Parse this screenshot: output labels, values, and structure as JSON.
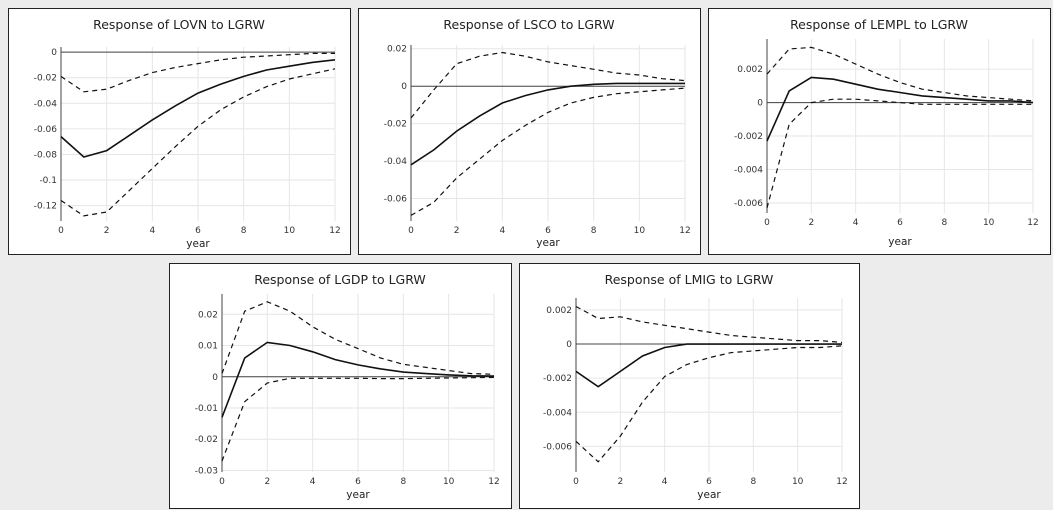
{
  "chart_data": [
    {
      "type": "line",
      "title": "Response of LOVN to LGRW",
      "xlabel": "year",
      "x": [
        0,
        1,
        2,
        3,
        4,
        5,
        6,
        7,
        8,
        9,
        10,
        11,
        12
      ],
      "xticks": [
        0,
        2,
        4,
        6,
        8,
        10,
        12
      ],
      "yticks": [
        0,
        -0.02,
        -0.04,
        -0.06,
        -0.08,
        -0.1,
        -0.12
      ],
      "ytick_labels": [
        "0",
        "-0.02",
        "-0.04",
        "-0.06",
        "-0.08",
        "-0.1",
        "-0.12"
      ],
      "ylim": [
        -0.132,
        0.004
      ],
      "series": [
        {
          "role": "response",
          "values": [
            -0.066,
            -0.082,
            -0.077,
            -0.065,
            -0.053,
            -0.042,
            -0.032,
            -0.025,
            -0.019,
            -0.014,
            -0.011,
            -0.008,
            -0.006
          ]
        },
        {
          "role": "upper",
          "values": [
            -0.019,
            -0.031,
            -0.029,
            -0.022,
            -0.016,
            -0.012,
            -0.009,
            -0.006,
            -0.004,
            -0.003,
            -0.002,
            -0.001,
            -0.001
          ]
        },
        {
          "role": "lower",
          "values": [
            -0.116,
            -0.128,
            -0.125,
            -0.108,
            -0.091,
            -0.074,
            -0.058,
            -0.045,
            -0.035,
            -0.027,
            -0.021,
            -0.017,
            -0.013
          ]
        }
      ]
    },
    {
      "type": "line",
      "title": "Response of LSCO to LGRW",
      "xlabel": "year",
      "x": [
        0,
        1,
        2,
        3,
        4,
        5,
        6,
        7,
        8,
        9,
        10,
        11,
        12
      ],
      "xticks": [
        0,
        2,
        4,
        6,
        8,
        10,
        12
      ],
      "yticks": [
        0.02,
        0,
        -0.02,
        -0.04,
        -0.06
      ],
      "ytick_labels": [
        "0.02",
        "0",
        "-0.02",
        "-0.04",
        "-0.06"
      ],
      "ylim": [
        -0.072,
        0.022
      ],
      "series": [
        {
          "role": "response",
          "values": [
            -0.042,
            -0.034,
            -0.024,
            -0.016,
            -0.009,
            -0.005,
            -0.002,
            0.0,
            0.001,
            0.0015,
            0.0015,
            0.0015,
            0.0015
          ]
        },
        {
          "role": "upper",
          "values": [
            -0.017,
            -0.002,
            0.012,
            0.016,
            0.018,
            0.016,
            0.013,
            0.011,
            0.009,
            0.007,
            0.006,
            0.004,
            0.003
          ]
        },
        {
          "role": "lower",
          "values": [
            -0.069,
            -0.062,
            -0.049,
            -0.039,
            -0.029,
            -0.021,
            -0.014,
            -0.009,
            -0.006,
            -0.004,
            -0.003,
            -0.002,
            -0.001
          ]
        }
      ]
    },
    {
      "type": "line",
      "title": "Response of LEMPL to LGRW",
      "xlabel": "year",
      "x": [
        0,
        1,
        2,
        3,
        4,
        5,
        6,
        7,
        8,
        9,
        10,
        11,
        12
      ],
      "xticks": [
        0,
        2,
        4,
        6,
        8,
        10,
        12
      ],
      "yticks": [
        0.002,
        0,
        -0.002,
        -0.004,
        -0.006
      ],
      "ytick_labels": [
        "0.002",
        "0",
        "-0.002",
        "-0.004",
        "-0.006"
      ],
      "ylim": [
        -0.0066,
        0.0038
      ],
      "series": [
        {
          "role": "response",
          "values": [
            -0.0023,
            0.0007,
            0.0015,
            0.0014,
            0.0011,
            0.0008,
            0.0006,
            0.0004,
            0.0003,
            0.0002,
            0.0001,
            0.0001,
            0.0
          ]
        },
        {
          "role": "upper",
          "values": [
            0.0017,
            0.0032,
            0.0033,
            0.0029,
            0.0023,
            0.0017,
            0.0012,
            0.0008,
            0.0006,
            0.0004,
            0.0003,
            0.0002,
            0.0001
          ]
        },
        {
          "role": "lower",
          "values": [
            -0.0063,
            -0.0013,
            0.0,
            0.0002,
            0.0002,
            0.0001,
            0.0,
            -0.0001,
            -0.0001,
            -0.0001,
            -0.0001,
            -0.0001,
            -0.0001
          ]
        }
      ]
    },
    {
      "type": "line",
      "title": "Response of LGDP to LGRW",
      "xlabel": "year",
      "x": [
        0,
        1,
        2,
        3,
        4,
        5,
        6,
        7,
        8,
        9,
        10,
        11,
        12
      ],
      "xticks": [
        0,
        2,
        4,
        6,
        8,
        10,
        12
      ],
      "yticks": [
        0.02,
        0.01,
        0,
        -0.01,
        -0.02,
        -0.03
      ],
      "ytick_labels": [
        "0.02",
        "0.01",
        "0",
        "-0.01",
        "-0.02",
        "-0.03"
      ],
      "ylim": [
        -0.0305,
        0.0265
      ],
      "series": [
        {
          "role": "response",
          "values": [
            -0.013,
            0.006,
            0.011,
            0.01,
            0.008,
            0.0055,
            0.0038,
            0.0025,
            0.0015,
            0.001,
            0.0006,
            0.0003,
            0.0002
          ]
        },
        {
          "role": "upper",
          "values": [
            0.001,
            0.021,
            0.024,
            0.021,
            0.016,
            0.012,
            0.009,
            0.006,
            0.004,
            0.003,
            0.002,
            0.001,
            0.0008
          ]
        },
        {
          "role": "lower",
          "values": [
            -0.027,
            -0.008,
            -0.002,
            -0.0005,
            -0.0005,
            -0.0005,
            -0.0005,
            -0.0006,
            -0.0006,
            -0.0005,
            -0.0004,
            -0.0003,
            -0.0002
          ]
        }
      ]
    },
    {
      "type": "line",
      "title": "Response of LMIG to LGRW",
      "xlabel": "year",
      "x": [
        0,
        1,
        2,
        3,
        4,
        5,
        6,
        7,
        8,
        9,
        10,
        11,
        12
      ],
      "xticks": [
        0,
        2,
        4,
        6,
        8,
        10,
        12
      ],
      "yticks": [
        0.002,
        0,
        -0.002,
        -0.004,
        -0.006
      ],
      "ytick_labels": [
        "0.002",
        "0",
        "-0.002",
        "-0.004",
        "-0.006"
      ],
      "ylim": [
        -0.0075,
        0.0027
      ],
      "series": [
        {
          "role": "response",
          "values": [
            -0.0016,
            -0.0025,
            -0.0016,
            -0.0007,
            -0.0002,
            0.0,
            0.0,
            0.0,
            0.0,
            0.0,
            0.0,
            0.0,
            0.0
          ]
        },
        {
          "role": "upper",
          "values": [
            0.0022,
            0.0015,
            0.0016,
            0.0013,
            0.0011,
            0.0009,
            0.0007,
            0.0005,
            0.0004,
            0.0003,
            0.0002,
            0.0002,
            0.0001
          ]
        },
        {
          "role": "lower",
          "values": [
            -0.0057,
            -0.0069,
            -0.0054,
            -0.0034,
            -0.0019,
            -0.0012,
            -0.0008,
            -0.0005,
            -0.0004,
            -0.0003,
            -0.0002,
            -0.0002,
            -0.0001
          ]
        }
      ]
    }
  ]
}
